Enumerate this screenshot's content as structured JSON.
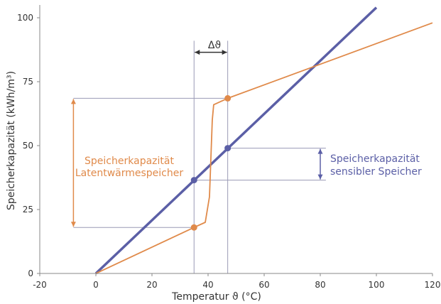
{
  "chart_data": {
    "type": "line",
    "title": "",
    "xlabel": "Temperatur ϑ (°C)",
    "ylabel": "Speicherkapazität (kWh/m³)",
    "xlim": [
      -20,
      120
    ],
    "ylim": [
      0,
      105
    ],
    "x_ticks": [
      -20,
      0,
      20,
      40,
      60,
      80,
      100,
      120
    ],
    "y_ticks": [
      0,
      25,
      50,
      75,
      100
    ],
    "grid": false,
    "colors": {
      "latent": "#e08a4a",
      "sensible": "#5b5fa6",
      "guides": "#9a9ab6",
      "axis": "#888888"
    },
    "series": [
      {
        "x": [
          0,
          100
        ],
        "y": [
          0,
          104
        ]
      },
      {
        "x": [
          0,
          35,
          39,
          40.5,
          41.5,
          42,
          44,
          47,
          120
        ],
        "y": [
          0,
          18,
          20,
          30,
          60,
          66,
          67,
          68.5,
          98
        ]
      }
    ],
    "markers": {
      "latent": [
        {
          "x": 35,
          "y": 18
        },
        {
          "x": 47,
          "y": 68.5
        }
      ],
      "sensible": [
        {
          "x": 35,
          "y": 36.5
        },
        {
          "x": 47,
          "y": 49
        }
      ]
    },
    "delta_label": "Δϑ",
    "annotations": {
      "latent_line1": "Speicherkapazität",
      "latent_line2": "Latentwärmespeicher",
      "sensible_line1": "Speicherkapazität",
      "sensible_line2": "sensibler Speicher"
    }
  }
}
